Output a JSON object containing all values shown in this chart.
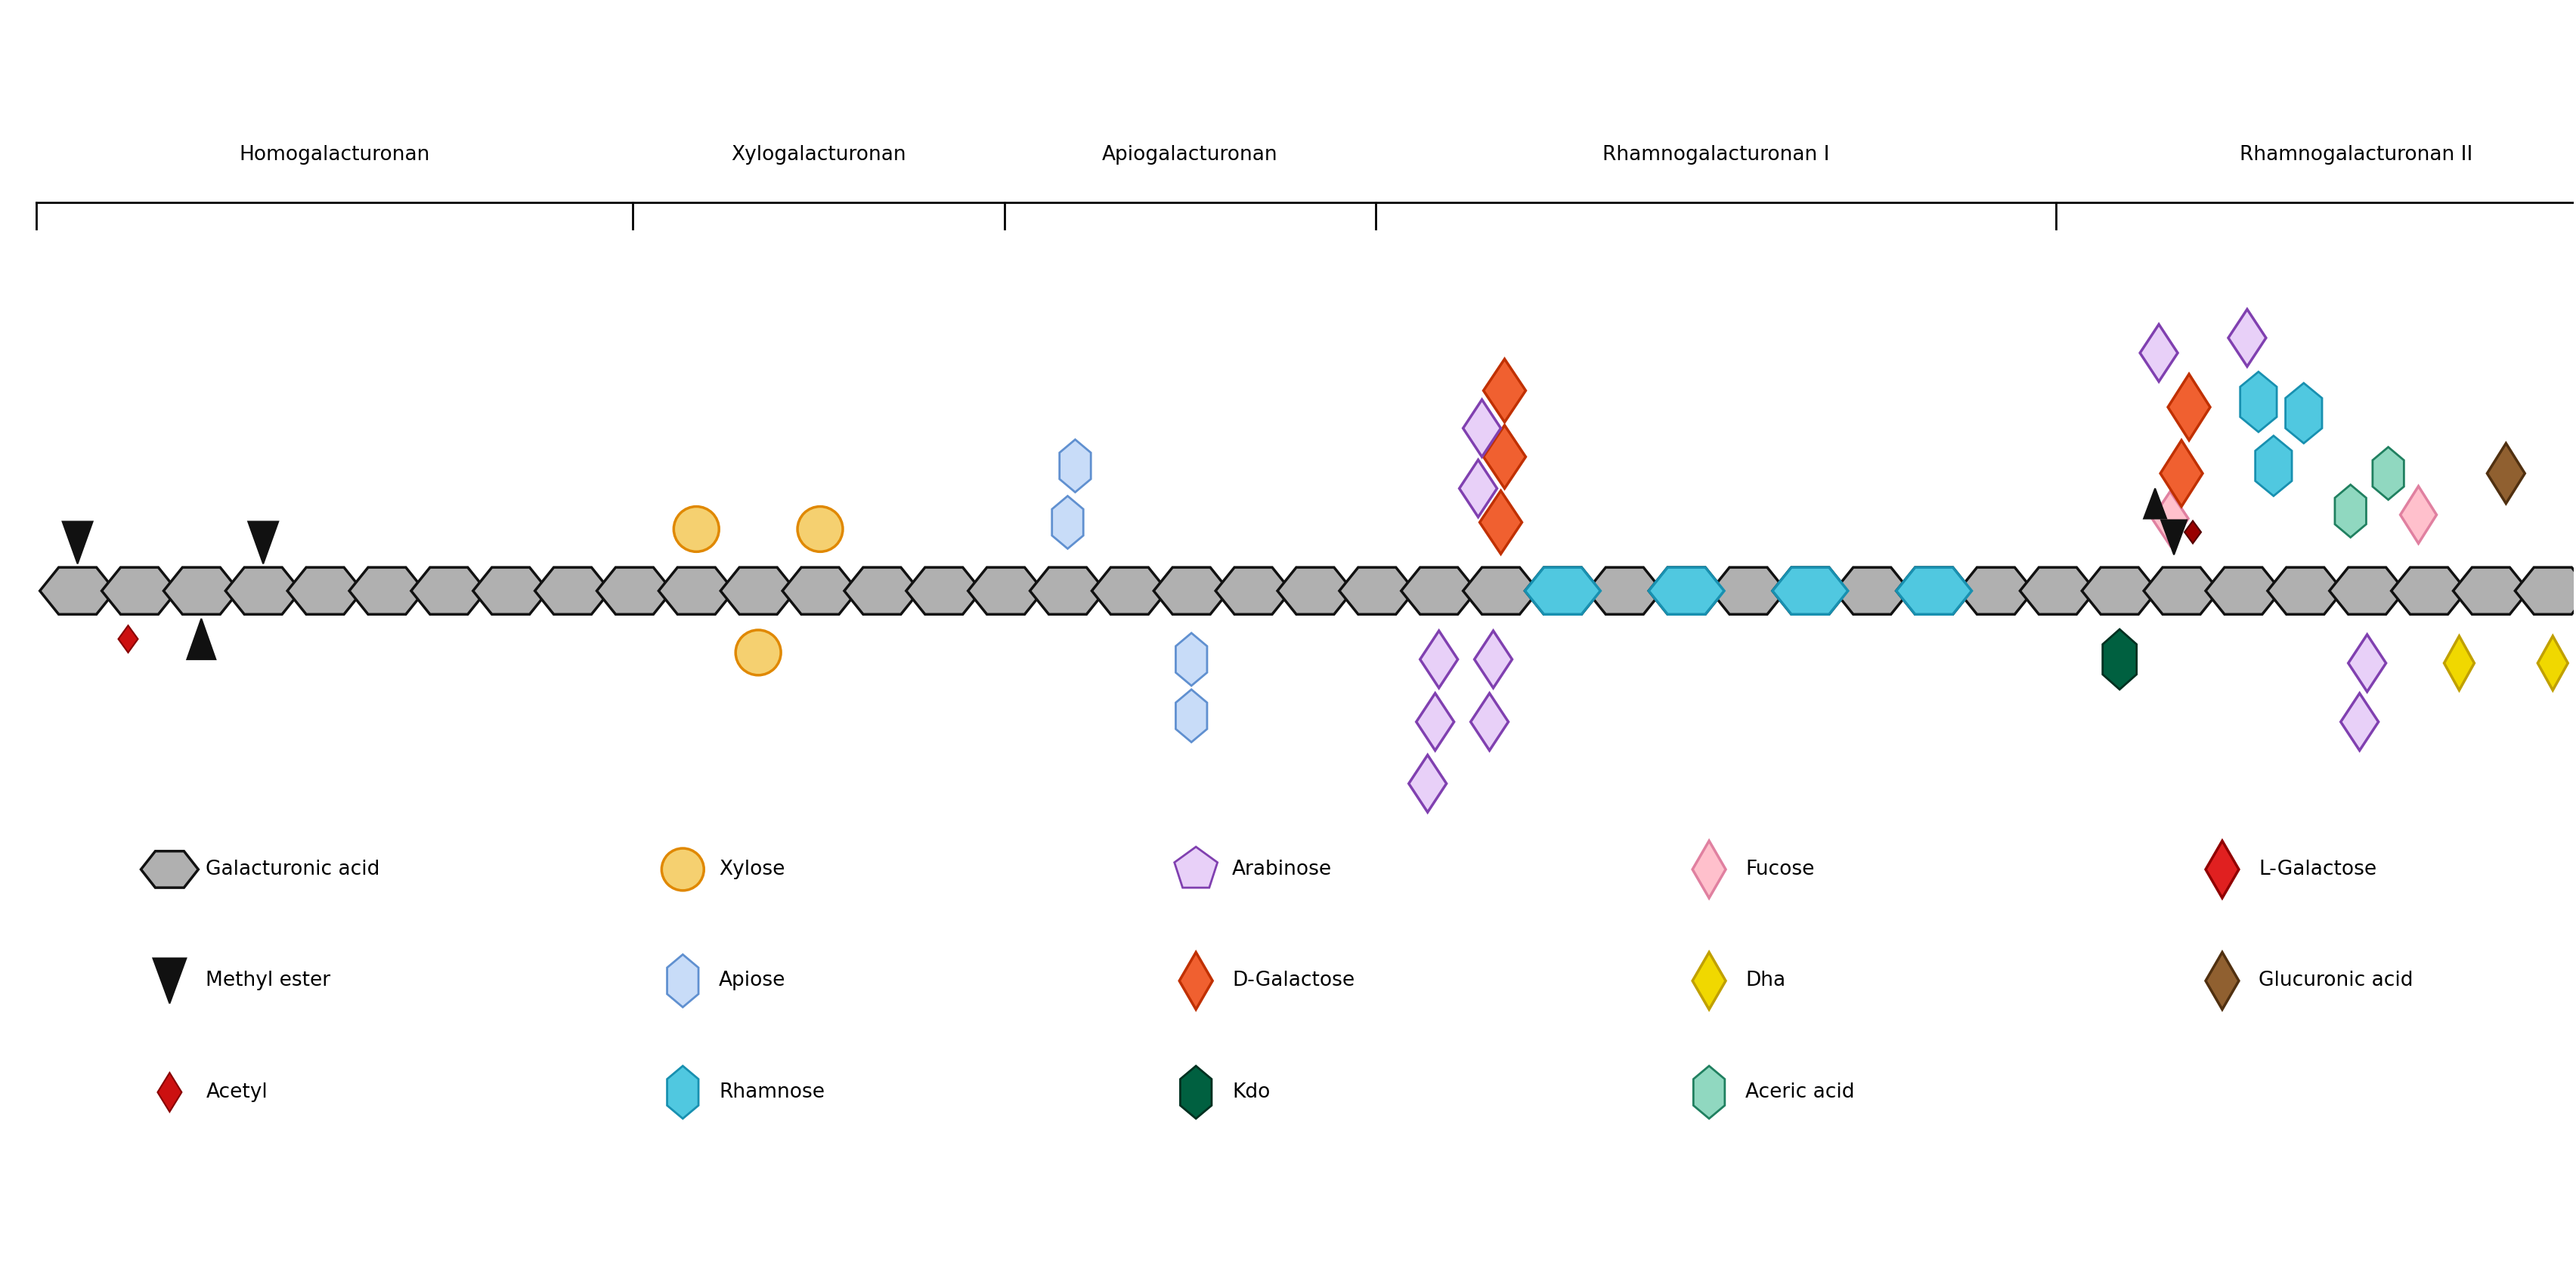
{
  "bg_color": "#ffffff",
  "section_labels": [
    "Homogalacturonan",
    "Xylogalacturonan",
    "Apiogalacturonan",
    "Rhamnogalacturonan I",
    "Rhamnogalacturonan II"
  ],
  "colors": {
    "galacturonic_acid_face": "#b0b0b0",
    "galacturonic_acid_edge": "#111111",
    "xylose_face": "#f5d070",
    "xylose_edge": "#e08800",
    "apiose_face": "#c8dcf8",
    "apiose_edge": "#6090d0",
    "rhamnose_face": "#50c8e0",
    "rhamnose_edge": "#1890b0",
    "arabinose_face": "#e8d0f8",
    "arabinose_edge": "#8040b0",
    "d_galactose_face": "#f06030",
    "d_galactose_edge": "#c03000",
    "kdo_face": "#006040",
    "kdo_edge": "#003020",
    "fucose_face": "#ffc0cc",
    "fucose_edge": "#e080a0",
    "dha_face": "#f0d800",
    "dha_edge": "#c0a000",
    "aceric_acid_face": "#90d8c0",
    "aceric_acid_edge": "#208060",
    "l_galactose_face": "#e02020",
    "l_galactose_edge": "#900000",
    "glucuronic_acid_face": "#906030",
    "glucuronic_acid_edge": "#503010",
    "black": "#111111",
    "acetyl_face": "#cc1010",
    "acetyl_edge": "#880000"
  }
}
